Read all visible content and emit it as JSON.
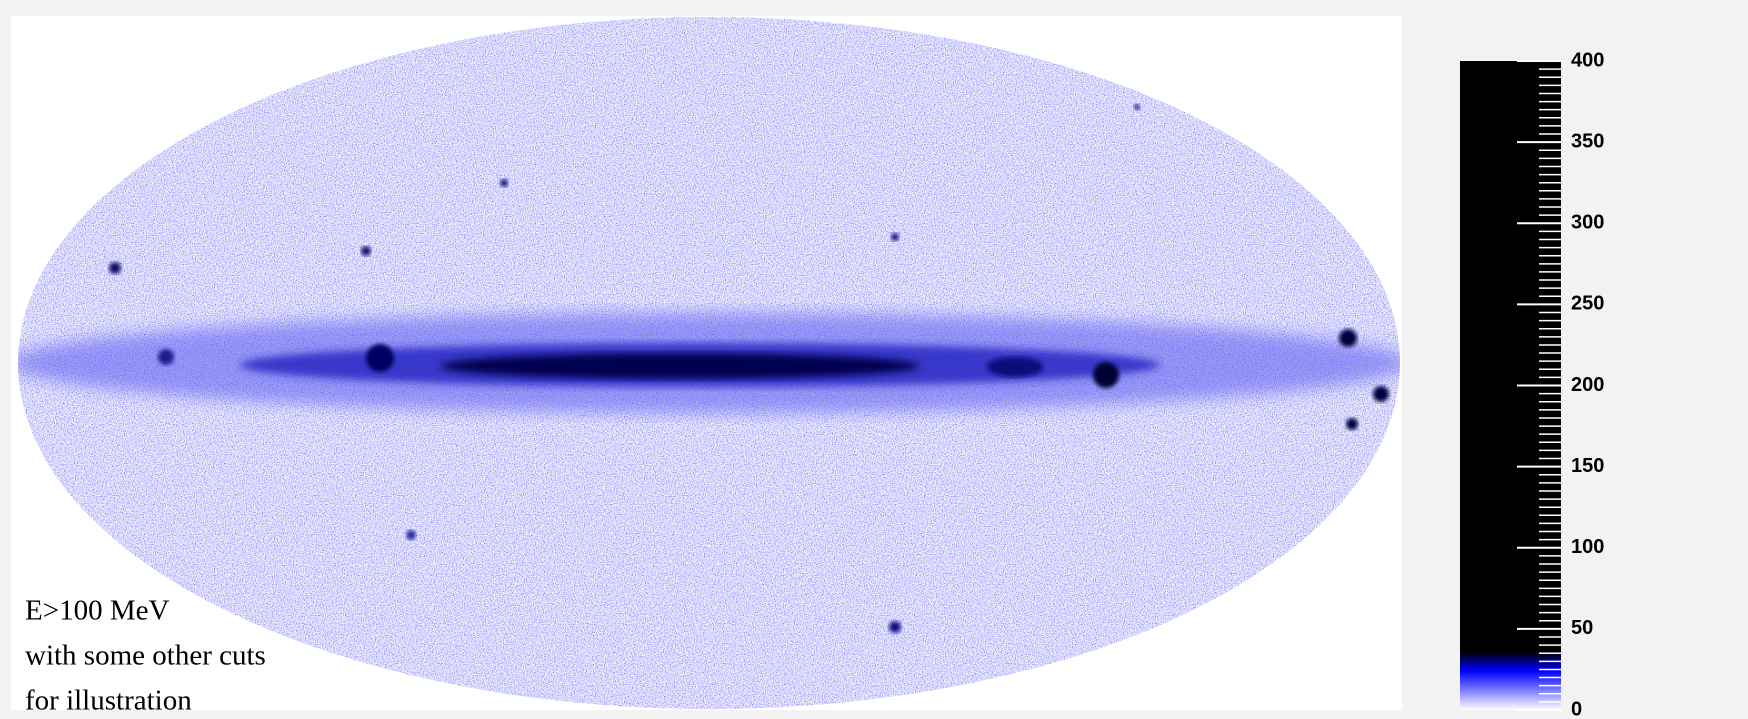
{
  "chart_data": {
    "type": "skymap",
    "annotation": [
      "E>100 MeV",
      "with some other cuts",
      "for illustration"
    ],
    "zlim": [
      0,
      400
    ],
    "zticks": [
      0,
      50,
      100,
      150,
      200,
      250,
      300,
      350,
      400
    ],
    "colors": [
      "#ffffff",
      "#0000ff",
      "#000000"
    ]
  }
}
